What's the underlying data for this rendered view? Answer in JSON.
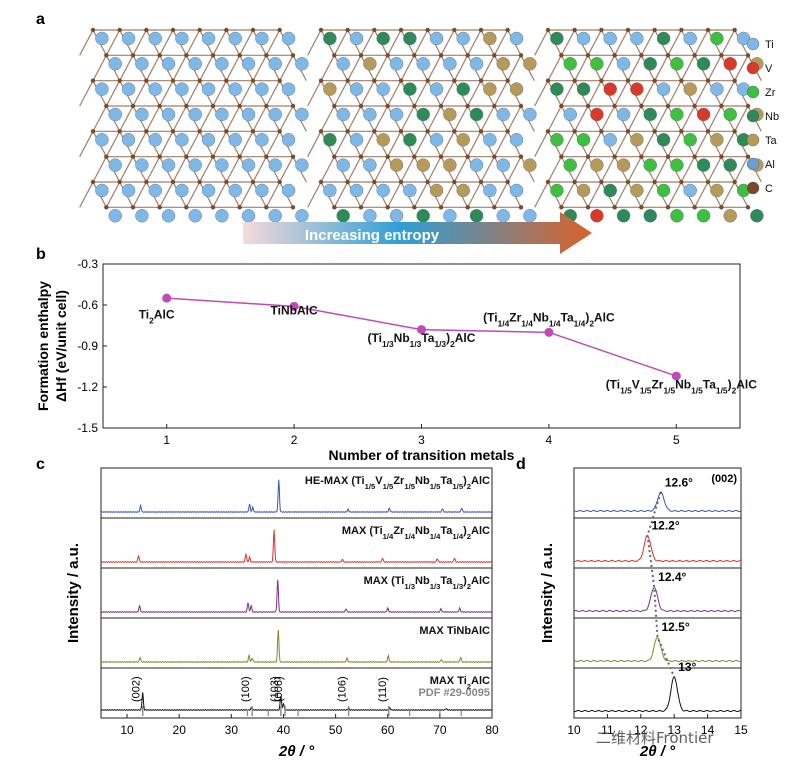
{
  "colors": {
    "Ti": "#7fb8e6",
    "V": "#d9392b",
    "Zr": "#3fbf3f",
    "Nb": "#2e8b57",
    "Ta": "#b59a5a",
    "Al": "#6a9fd3",
    "C": "#7a4a2a",
    "panel_b_line": "#c04ab8",
    "xrd": [
      "#3a56b5",
      "#e0312c",
      "#7b2f8e",
      "#7d8a2a",
      "#111111"
    ],
    "arrow_start": "#f6dada",
    "arrow_mid": "#2f9fd6",
    "arrow_end": "#d9622a"
  },
  "panel_a": {
    "letter": "a",
    "arrow_label": "Increasing entropy",
    "legend": [
      {
        "key": "Ti",
        "label": "Ti"
      },
      {
        "key": "V",
        "label": "V"
      },
      {
        "key": "Zr",
        "label": "Zr"
      },
      {
        "key": "Nb",
        "label": "Nb"
      },
      {
        "key": "Ta",
        "label": "Ta"
      },
      {
        "key": "Al",
        "label": "Al"
      },
      {
        "key": "C",
        "label": "C"
      }
    ]
  },
  "chart_data": [
    {
      "panel": "b",
      "type": "line",
      "xlabel": "Number of transition metals",
      "ylabel_line1": "Formation enthalpy",
      "ylabel_line2": "ΔHf (eV/unit cell)",
      "x": [
        1,
        2,
        3,
        4,
        5
      ],
      "y": [
        -0.55,
        -0.61,
        -0.78,
        -0.8,
        -1.12
      ],
      "xlim": [
        0.5,
        5.5
      ],
      "ylim": [
        -1.5,
        -0.3
      ],
      "xticks": [
        "1",
        "2",
        "3",
        "4",
        "5"
      ],
      "yticks": [
        "-0.3",
        "-0.6",
        "-0.9",
        "-1.2",
        "-1.5"
      ],
      "point_labels": [
        {
          "base": "Ti",
          "sub": "2",
          "rest": "AlC"
        },
        {
          "text": "TiNbAlC"
        },
        {
          "text": "(Ti1/3Nb1/3Ta1/3)2AlC"
        },
        {
          "text": "(Ti1/4Zr1/4Nb1/4Ta1/4)2AlC"
        },
        {
          "text": "(Ti1/5V1/5Zr1/5Nb1/5Ta1/5)2AlC"
        }
      ]
    },
    {
      "panel": "c",
      "type": "line",
      "xlabel": "2θ / °",
      "ylabel": "Intensity / a.u.",
      "xlim": [
        5,
        80
      ],
      "xticks": [
        "10",
        "20",
        "30",
        "40",
        "50",
        "60",
        "70",
        "80"
      ],
      "series": [
        {
          "name": "HE-MAX (Ti1/5V1/5Zr1/5Nb1/5Ta1/5)2AlC",
          "peaks": [
            [
              12.6,
              0.2
            ],
            [
              33.5,
              0.25
            ],
            [
              34.1,
              0.15
            ],
            [
              39.1,
              1.0
            ],
            [
              52.4,
              0.08
            ],
            [
              60.3,
              0.12
            ],
            [
              70.5,
              0.1
            ],
            [
              74.2,
              0.12
            ]
          ]
        },
        {
          "name": "MAX (Ti1/4Zr1/4Nb1/4Ta1/4)2AlC",
          "peaks": [
            [
              12.2,
              0.2
            ],
            [
              32.8,
              0.25
            ],
            [
              33.5,
              0.15
            ],
            [
              38.2,
              1.0
            ],
            [
              51.3,
              0.08
            ],
            [
              59.0,
              0.12
            ],
            [
              69.5,
              0.1
            ],
            [
              72.8,
              0.12
            ]
          ]
        },
        {
          "name": "MAX (Ti1/3Nb1/3Ta1/3)2AlC",
          "peaks": [
            [
              12.4,
              0.2
            ],
            [
              33.2,
              0.3
            ],
            [
              33.8,
              0.2
            ],
            [
              38.9,
              1.0
            ],
            [
              52.0,
              0.1
            ],
            [
              60.0,
              0.12
            ],
            [
              70.2,
              0.1
            ],
            [
              73.8,
              0.12
            ]
          ]
        },
        {
          "name": "MAX TiNbAlC",
          "peaks": [
            [
              12.5,
              0.15
            ],
            [
              33.4,
              0.2
            ],
            [
              34.0,
              0.12
            ],
            [
              39.0,
              1.0
            ],
            [
              52.2,
              0.12
            ],
            [
              60.1,
              0.2
            ],
            [
              70.3,
              0.08
            ],
            [
              74.0,
              0.15
            ]
          ]
        },
        {
          "name": "MAX Ti2AlC",
          "peaks": [
            [
              13.0,
              0.55
            ],
            [
              33.9,
              0.08
            ],
            [
              39.5,
              0.45
            ],
            [
              40.0,
              0.2
            ],
            [
              52.5,
              0.06
            ],
            [
              60.4,
              0.06
            ],
            [
              71.2,
              0.04
            ]
          ]
        }
      ],
      "reference": "PDF #29-0095",
      "reference_peaks": [
        {
          "x": 13.0,
          "label": "(002)"
        },
        {
          "x": 34.0,
          "label": "(100)"
        },
        {
          "x": 39.5,
          "label": "(103)"
        },
        {
          "x": 40.3,
          "label": "(006)"
        },
        {
          "x": 52.5,
          "label": "(106)"
        },
        {
          "x": 60.2,
          "label": "(110)"
        }
      ],
      "reference_extra_ticks": [
        33.1,
        37.1,
        42.8,
        64.2,
        70.0,
        74.1
      ]
    },
    {
      "panel": "d",
      "type": "line",
      "xlabel": "2θ / °",
      "ylabel": "Intensity / a.u.",
      "title": "(002)",
      "xlim": [
        10,
        15
      ],
      "xticks": [
        "10",
        "11",
        "12",
        "13",
        "14",
        "15"
      ],
      "peak_positions": [
        12.6,
        12.2,
        12.4,
        12.5,
        13.0
      ],
      "peak_labels": [
        "12.6°",
        "12.2°",
        "12.4°",
        "12.5°",
        "13°"
      ],
      "peak_heights": [
        0.55,
        0.75,
        0.7,
        0.7,
        1.0
      ]
    }
  ],
  "watermark": "二维材料Frontier"
}
